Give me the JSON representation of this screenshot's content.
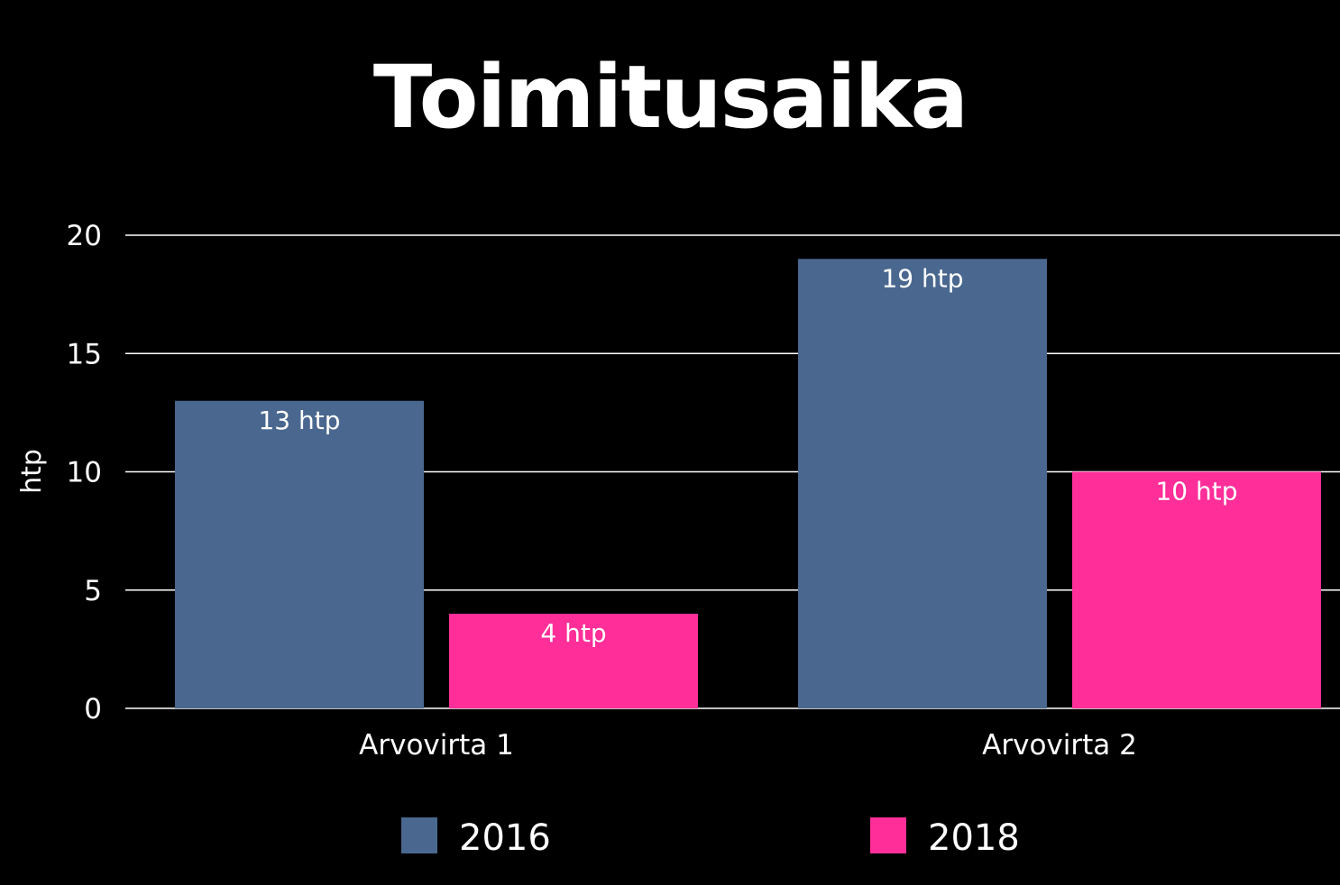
{
  "chart_data": {
    "type": "bar",
    "title": "Toimitusaika",
    "xlabel": "",
    "ylabel": "htp",
    "ylim": [
      0,
      20
    ],
    "yticks": [
      0,
      5,
      10,
      15,
      20
    ],
    "grid": true,
    "legend_position": "bottom",
    "categories": [
      "Arvovirta 1",
      "Arvovirta 2"
    ],
    "series": [
      {
        "name": "2016",
        "color": "#4a688f",
        "values": [
          13,
          19
        ],
        "data_labels": [
          "13 htp",
          "19 htp"
        ]
      },
      {
        "name": "2018",
        "color": "#ff2e99",
        "values": [
          4,
          10
        ],
        "data_labels": [
          "4 htp",
          "10 htp"
        ]
      }
    ]
  }
}
